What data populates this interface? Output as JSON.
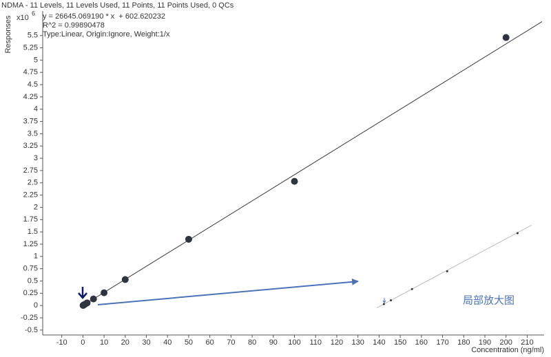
{
  "chart_data": [
    {
      "type": "scatter",
      "title": "NDMA - 11 Levels, 11 Levels Used, 11 Points, 11 Points Used, 0 QCs",
      "annotations": [
        "y = 26645.069190 * x  + 602.620232",
        "R^2 = 0.99890478",
        "Type:Linear, Origin:Ignore, Weight:1/x"
      ],
      "y_multiplier": "x10",
      "y_multiplier_exponent": "6",
      "ylabel": "Responses",
      "xlabel": "Concentration (ng/ml)",
      "x": [
        0.1,
        0.2,
        0.5,
        1,
        2,
        5,
        10,
        20,
        50,
        100,
        200
      ],
      "values": [
        0.003,
        0.006,
        0.014,
        0.027,
        0.054,
        0.134,
        0.26,
        0.53,
        1.35,
        2.53,
        5.46
      ],
      "color": "#2e3440",
      "fit_line": {
        "x": [
          -1,
          217
        ],
        "y": [
          -0.026,
          5.783
        ],
        "color": "#333333"
      },
      "xlim": [
        -19,
        218
      ],
      "ylim": [
        -0.6,
        6.0
      ],
      "xticks": [
        -10,
        0,
        10,
        20,
        30,
        40,
        50,
        60,
        70,
        80,
        90,
        100,
        110,
        120,
        130,
        140,
        150,
        160,
        170,
        180,
        190,
        200,
        210
      ],
      "yticks": [
        -0.5,
        -0.25,
        0,
        0.25,
        0.5,
        0.75,
        1,
        1.25,
        1.5,
        1.75,
        2,
        2.25,
        2.5,
        2.75,
        3,
        3.25,
        3.5,
        3.75,
        4,
        4.25,
        4.5,
        4.75,
        5,
        5.25,
        5.5
      ]
    },
    {
      "type": "scatter",
      "annotation": "局部放大图",
      "x": [
        1,
        2,
        5,
        10,
        20
      ],
      "values": [
        0.027,
        0.054,
        0.134,
        0.26,
        0.53
      ],
      "color": "#333333",
      "fit_line": {
        "x": [
          0,
          22
        ],
        "y": [
          0.0006,
          0.587
        ],
        "color": "#bbbbbb"
      },
      "xlim": [
        -0.7,
        22.8
      ],
      "ylim": [
        -0.06,
        0.72
      ]
    }
  ]
}
